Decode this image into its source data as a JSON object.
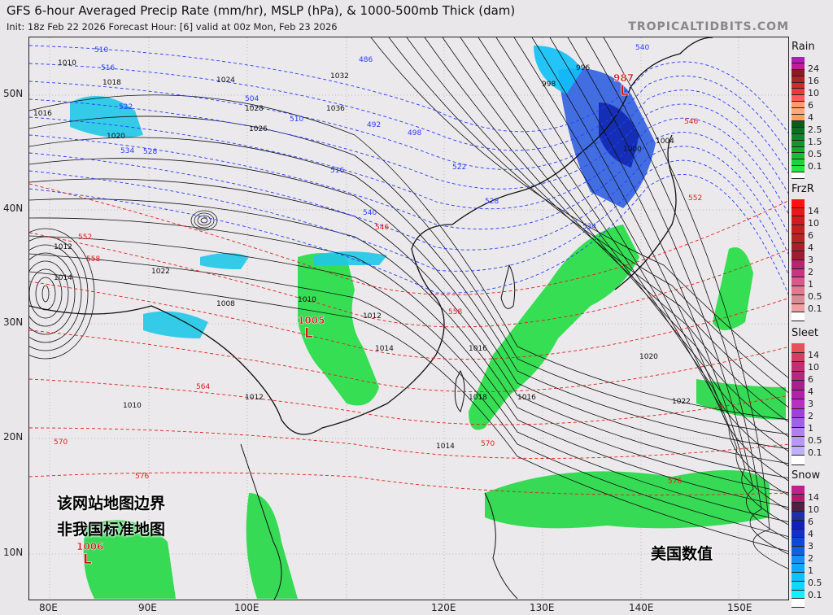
{
  "header": {
    "title": "GFS 6-hour Averaged Precip Rate (mm/hr), MSLP (hPa), & 1000-500mb Thick (dam)",
    "subtitle": "Init: 18z Feb 22 2026   Forecast Hour: [6]   valid at 00z Mon, Feb 23 2026",
    "brand": "TROPICALTIDBITS.COM"
  },
  "axes": {
    "lat_labels": [
      "50N",
      "40N",
      "30N",
      "20N",
      "10N"
    ],
    "lon_labels": [
      "80E",
      "90E",
      "100E",
      "120E",
      "130E",
      "140E",
      "150E"
    ]
  },
  "legends": [
    {
      "title": "Rain",
      "labels": [
        "24",
        "16",
        "10",
        "6",
        "4",
        "2.5",
        "1.5",
        "0.5",
        "0.1"
      ],
      "colors": [
        "#b21cb8",
        "#c01c9c",
        "#8c1a22",
        "#b0222a",
        "#d02a2a",
        "#f03838",
        "#ff5a5a",
        "#ff9a6a",
        "#ffa878",
        "#ffa060",
        "#0c5a1c",
        "#0e6e22",
        "#118426",
        "#13962a",
        "#16aa30",
        "#1abe36",
        "#1ed23c",
        "#24e644",
        "#ffffff"
      ]
    },
    {
      "title": "FrzR",
      "labels": [
        "14",
        "10",
        "6",
        "4",
        "3",
        "2",
        "1",
        "0.5",
        "0.1"
      ],
      "colors": [
        "#ff1010",
        "#e81818",
        "#d01c1c",
        "#c42020",
        "#b82424",
        "#a8202c",
        "#9c1c34",
        "#b82470",
        "#c83480",
        "#d85a8c",
        "#e07a90",
        "#d88c94",
        "#f0a0a0",
        "#ffffff"
      ]
    },
    {
      "title": "Sleet",
      "labels": [
        "14",
        "10",
        "6",
        "4",
        "3",
        "2",
        "1",
        "0.5",
        "0.1"
      ],
      "colors": [
        "#e8505a",
        "#d04060",
        "#c03070",
        "#b42880",
        "#a8208c",
        "#b020a8",
        "#b830c0",
        "#a040d8",
        "#a060e8",
        "#b080f0",
        "#b898f4",
        "#c0b0f8",
        "#ffffff"
      ]
    },
    {
      "title": "Snow",
      "labels": [
        "14",
        "10",
        "6",
        "4",
        "3",
        "2",
        "1",
        "0.5",
        "0.1"
      ],
      "colors": [
        "#c0208c",
        "#b01c6c",
        "#502040",
        "#2030a0",
        "#1020b8",
        "#1030c8",
        "#1048d8",
        "#1060e0",
        "#1890f0",
        "#10a8f8",
        "#10c0fc",
        "#10d8fc",
        "#10f0ff",
        "#ffffff"
      ]
    }
  ],
  "pressure_centers": [
    {
      "value": "987",
      "symbol": "L"
    },
    {
      "value": "1005",
      "symbol": "L"
    },
    {
      "value": "1006",
      "symbol": "L"
    }
  ],
  "contour_labels": [
    "1010",
    "1018",
    "1016",
    "1020",
    "1024",
    "1028",
    "1032",
    "1036",
    "1012",
    "1014",
    "1022",
    "1026",
    "998",
    "996",
    "1000",
    "1004",
    "1008",
    "1010",
    "1012",
    "1014",
    "1016",
    "1018",
    "1020",
    "1022",
    "1010",
    "1012",
    "1014",
    "1016"
  ],
  "thickness_labels": [
    "510",
    "516",
    "522",
    "528",
    "534",
    "540",
    "546",
    "552",
    "558",
    "564",
    "570",
    "576",
    "486",
    "492",
    "498",
    "504",
    "510",
    "516",
    "522",
    "528",
    "534",
    "540",
    "546",
    "552",
    "558",
    "570",
    "576"
  ],
  "watermarks": [
    "该网站地图边界",
    "非我国标准地图",
    "美国数值"
  ],
  "colors": {
    "isobar": "#111111",
    "thickness_cold": "#2a3cff",
    "thickness_warm": "#e02020",
    "precip": "#22e044"
  }
}
